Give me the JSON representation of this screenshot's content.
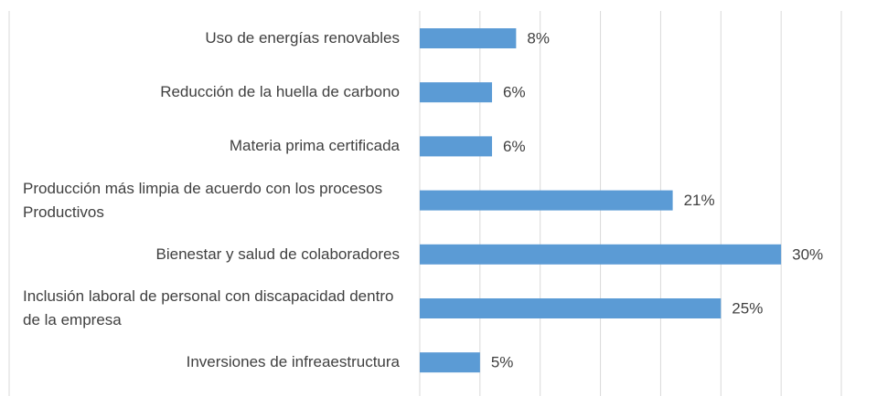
{
  "chart_data": {
    "type": "bar",
    "orientation": "horizontal",
    "categories": [
      "Uso de energías renovables",
      "Reducción de la huella de carbono",
      "Materia prima certificada",
      "Producción más limpia de acuerdo con los procesos Productivos",
      "Bienestar y salud de colaboradores",
      "Inclusión laboral de personal con discapacidad dentro de la empresa",
      "Inversiones de infreaestructura"
    ],
    "values": [
      8,
      6,
      6,
      21,
      30,
      25,
      5
    ],
    "value_labels": [
      "8%",
      "6%",
      "6%",
      "21%",
      "30%",
      "25%",
      "5%"
    ],
    "color": "#5b9bd5",
    "xlim": [
      0,
      35
    ],
    "xticks": [
      0,
      5,
      10,
      15,
      20,
      25,
      30,
      35
    ],
    "grid": true
  }
}
